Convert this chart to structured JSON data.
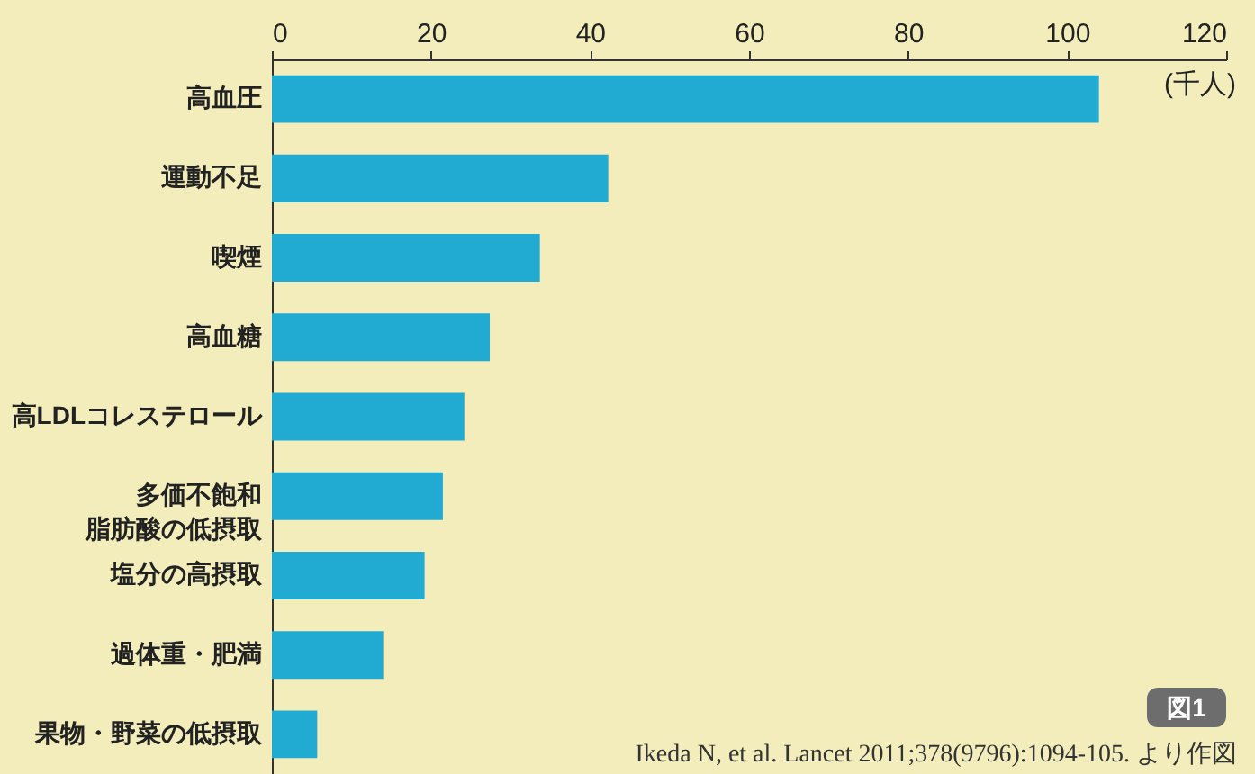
{
  "chart_data": {
    "type": "bar",
    "orientation": "horizontal",
    "xlabel": "(千人)",
    "categories": [
      "高血圧",
      "運動不足",
      "喫煙",
      "高血糖",
      "高LDLコレステロール",
      "多価不飽和脂肪酸の低摂取",
      "塩分の高摂取",
      "過体重・肥満",
      "果物・野菜の低摂取"
    ],
    "values": [
      104,
      42.3,
      33.7,
      27.4,
      24.2,
      21.5,
      19.2,
      14,
      5.7
    ],
    "color": "#22abd2",
    "xlim": [
      0,
      120
    ],
    "xticks": [
      0,
      20,
      40,
      60,
      80,
      100,
      120
    ],
    "grid": false,
    "annotations": [
      "図1",
      "Ikeda N, et al. Lancet 2011;378(9796):1094-105. より作図"
    ]
  }
}
